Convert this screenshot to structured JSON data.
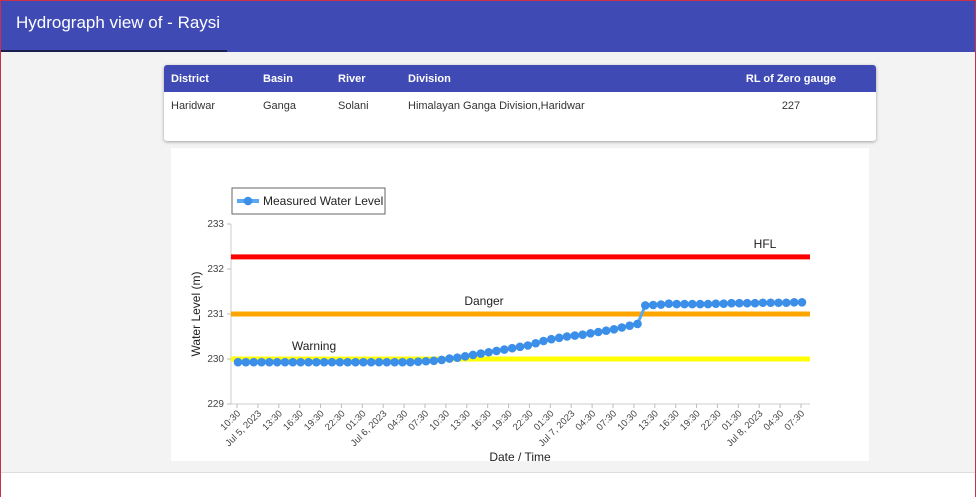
{
  "header": {
    "title": "Hydrograph view of - Raysi"
  },
  "station_table": {
    "columns": [
      "District",
      "Basin",
      "River",
      "Division",
      "RL of Zero gauge"
    ],
    "row": [
      "Haridwar",
      "Ganga",
      "Solani",
      "Himalayan Ganga Division,Haridwar",
      "227"
    ]
  },
  "colors": {
    "header": "#3f4ab5",
    "hfl": "#ff0000",
    "danger": "#ffa500",
    "warning": "#ffff00",
    "series": "#3b8fe8"
  },
  "chart_data": {
    "type": "line",
    "ylabel": "Water Level (m)",
    "xlabel": "Date / Time",
    "ylim": [
      229,
      233
    ],
    "yticks": [
      "229",
      "230",
      "231",
      "232",
      "233"
    ],
    "legend": {
      "position": "top-left",
      "entries": [
        "Measured Water Level"
      ]
    },
    "reference_lines": [
      {
        "name": "HFL",
        "value": 232.27,
        "color": "#ff0000"
      },
      {
        "name": "Danger",
        "value": 231.0,
        "color": "#ffa500"
      },
      {
        "name": "Warning",
        "value": 230.0,
        "color": "#ffff00"
      }
    ],
    "x_tick_labels": [
      "10:30",
      "Jul 5, 2023",
      "13:30",
      "16:30",
      "19:30",
      "22:30",
      "01:30",
      "Jul 6, 2023",
      "04:30",
      "07:30",
      "10:30",
      "13:30",
      "16:30",
      "19:30",
      "22:30",
      "01:30",
      "Jul 7, 2023",
      "04:30",
      "07:30",
      "10:30",
      "13:30",
      "16:30",
      "19:30",
      "22:30",
      "01:30",
      "Jul 8, 2023",
      "04:30",
      "07:30"
    ],
    "series": [
      {
        "name": "Measured Water Level",
        "values": [
          229.93,
          229.93,
          229.93,
          229.93,
          229.93,
          229.93,
          229.93,
          229.93,
          229.93,
          229.93,
          229.93,
          229.93,
          229.93,
          229.93,
          229.93,
          229.93,
          229.93,
          229.93,
          229.93,
          229.93,
          229.93,
          229.93,
          229.93,
          229.94,
          229.95,
          229.96,
          229.98,
          230.01,
          230.03,
          230.06,
          230.09,
          230.12,
          230.15,
          230.18,
          230.21,
          230.24,
          230.27,
          230.3,
          230.35,
          230.4,
          230.44,
          230.47,
          230.5,
          230.52,
          230.54,
          230.57,
          230.6,
          230.63,
          230.66,
          230.7,
          230.74,
          230.78,
          231.19,
          231.2,
          231.21,
          231.23,
          231.22,
          231.22,
          231.22,
          231.22,
          231.22,
          231.23,
          231.23,
          231.24,
          231.24,
          231.24,
          231.24,
          231.25,
          231.25,
          231.25,
          231.25,
          231.26,
          231.26
        ]
      }
    ]
  }
}
